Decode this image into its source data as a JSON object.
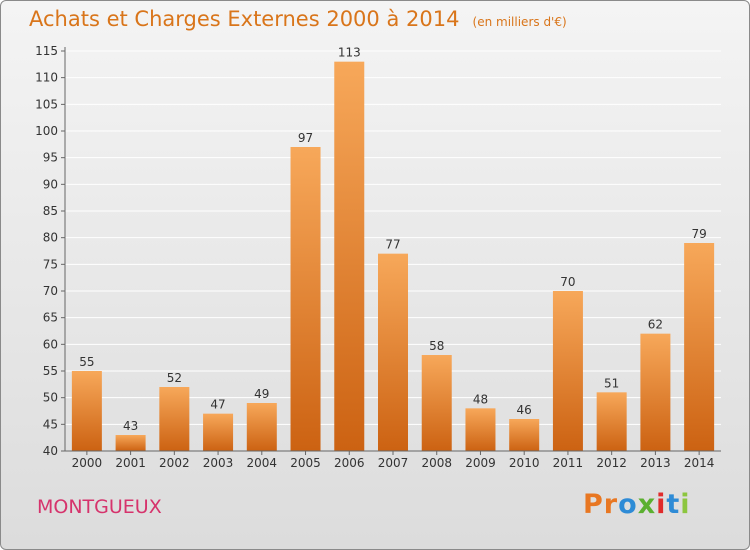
{
  "header": {
    "title": "Achats et Charges Externes 2000 à 2014",
    "subtitle": "(en milliers d'€)"
  },
  "footer": {
    "commune": "MONTGUEUX",
    "logo_text": "Proxiti",
    "logo_colors": [
      "#e87722",
      "#e87722",
      "#2e8bd6",
      "#5bb030",
      "#e02b2b",
      "#2e8bd6",
      "#8cc63f"
    ]
  },
  "colors": {
    "bar_top": "#f7a85a",
    "bar_bottom": "#cc6212",
    "grid": "#ffffff",
    "axis_text": "#333333",
    "title": "#d9751a",
    "commune": "#d6336c"
  },
  "chart_data": {
    "type": "bar",
    "categories": [
      "2000",
      "2001",
      "2002",
      "2003",
      "2004",
      "2005",
      "2006",
      "2007",
      "2008",
      "2009",
      "2010",
      "2011",
      "2012",
      "2013",
      "2014"
    ],
    "values": [
      55,
      43,
      52,
      47,
      49,
      97,
      113,
      77,
      58,
      48,
      46,
      70,
      51,
      62,
      79
    ],
    "ylim": [
      40,
      115
    ],
    "yticks": [
      40,
      45,
      50,
      55,
      60,
      65,
      70,
      75,
      80,
      85,
      90,
      95,
      100,
      105,
      110,
      115
    ],
    "grid": true
  }
}
